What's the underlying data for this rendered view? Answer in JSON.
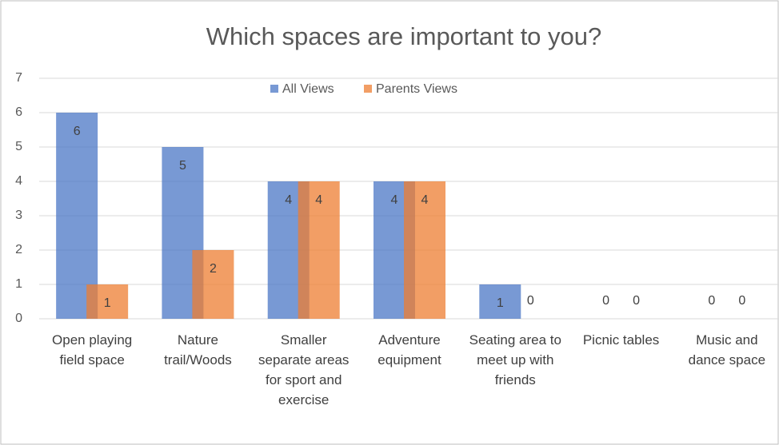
{
  "chart_data": {
    "type": "bar",
    "title": "Which spaces are important to you?",
    "categories": [
      "Open playing field space",
      "Nature trail/Woods",
      "Smaller separate areas for sport and exercise",
      "Adventure equipment",
      "Seating area to meet up with friends",
      "Picnic tables",
      "Music and dance space"
    ],
    "series": [
      {
        "name": "All Views",
        "color": "#4472c4",
        "values": [
          6,
          5,
          4,
          4,
          1,
          0,
          0
        ]
      },
      {
        "name": "Parents Views",
        "color": "#ed7d31",
        "values": [
          1,
          2,
          4,
          4,
          0,
          0,
          0
        ]
      }
    ],
    "ylim": [
      0,
      7
    ],
    "yticks": [
      0,
      1,
      2,
      3,
      4,
      5,
      6,
      7
    ],
    "grid": true,
    "legend": "top"
  }
}
